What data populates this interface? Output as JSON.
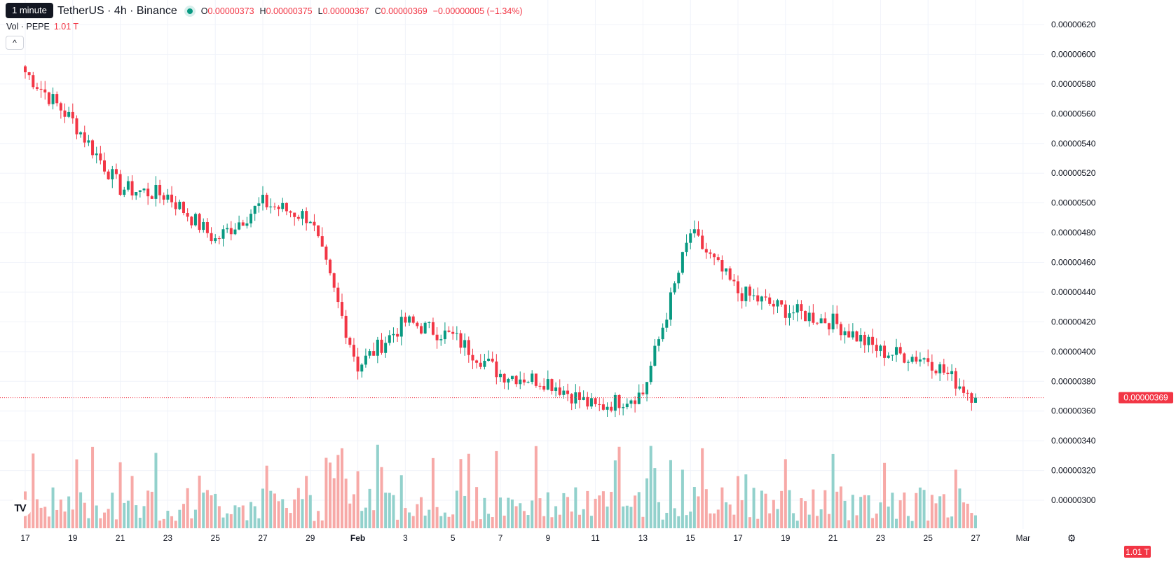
{
  "header": {
    "tooltip": "1 minute",
    "symbol_title": "TetherUS · 4h · Binance",
    "open_label": "O",
    "open_value": "0.00000373",
    "high_label": "H",
    "high_value": "0.00000375",
    "low_label": "L",
    "low_value": "0.00000367",
    "close_label": "C",
    "close_value": "0.00000369",
    "change_value": "−0.00000005 (−1.34%)",
    "collapse_glyph": "^",
    "logo_text": "TV"
  },
  "volume_legend": {
    "label": "Vol · PEPE",
    "value": "1.01 T"
  },
  "colors": {
    "up": "#089981",
    "down": "#f23645",
    "up_volume": "#92d1cc",
    "down_volume": "#f7a9a7",
    "grid": "#f0f3fa"
  },
  "icons": {
    "collapse": "chevron-up-icon",
    "logo": "tradingview-logo-icon",
    "settings": "gear-icon"
  },
  "chart_data": {
    "type": "candlestick",
    "interval": "4h",
    "exchange": "Binance",
    "y_axis_ticks": [
      "0.00000620",
      "0.00000600",
      "0.00000580",
      "0.00000560",
      "0.00000540",
      "0.00000520",
      "0.00000500",
      "0.00000480",
      "0.00000460",
      "0.00000440",
      "0.00000420",
      "0.00000400",
      "0.00000380",
      "0.00000360",
      "0.00000340",
      "0.00000320",
      "0.00000300"
    ],
    "ylim": [
      2.89e-06,
      6.25e-06
    ],
    "x_axis_labels": [
      "17",
      "19",
      "21",
      "23",
      "25",
      "27",
      "29",
      "Feb",
      "3",
      "5",
      "7",
      "9",
      "11",
      "13",
      "15",
      "17",
      "19",
      "21",
      "23",
      "25",
      "27",
      "Mar"
    ],
    "last_price_label": "0.00000369",
    "volume_label": "1.01 T",
    "series_close_anchors": {
      "x": [
        "17",
        "19",
        "21",
        "23",
        "25",
        "27",
        "29",
        "Feb",
        "3",
        "5",
        "7",
        "9",
        "11",
        "13",
        "15",
        "17",
        "19",
        "21",
        "23",
        "25",
        "27"
      ],
      "close": [
        5.88e-06,
        5.55e-06,
        5.1e-06,
        5.05e-06,
        4.75e-06,
        5e-06,
        4.9e-06,
        3.9e-06,
        4.2e-06,
        4.1e-06,
        3.85e-06,
        3.8e-06,
        3.62e-06,
        3.72e-06,
        4.8e-06,
        4.4e-06,
        4.28e-06,
        4.2e-06,
        4e-06,
        3.95e-06,
        3.69e-06
      ]
    },
    "grid": true,
    "legend": "top-left"
  }
}
